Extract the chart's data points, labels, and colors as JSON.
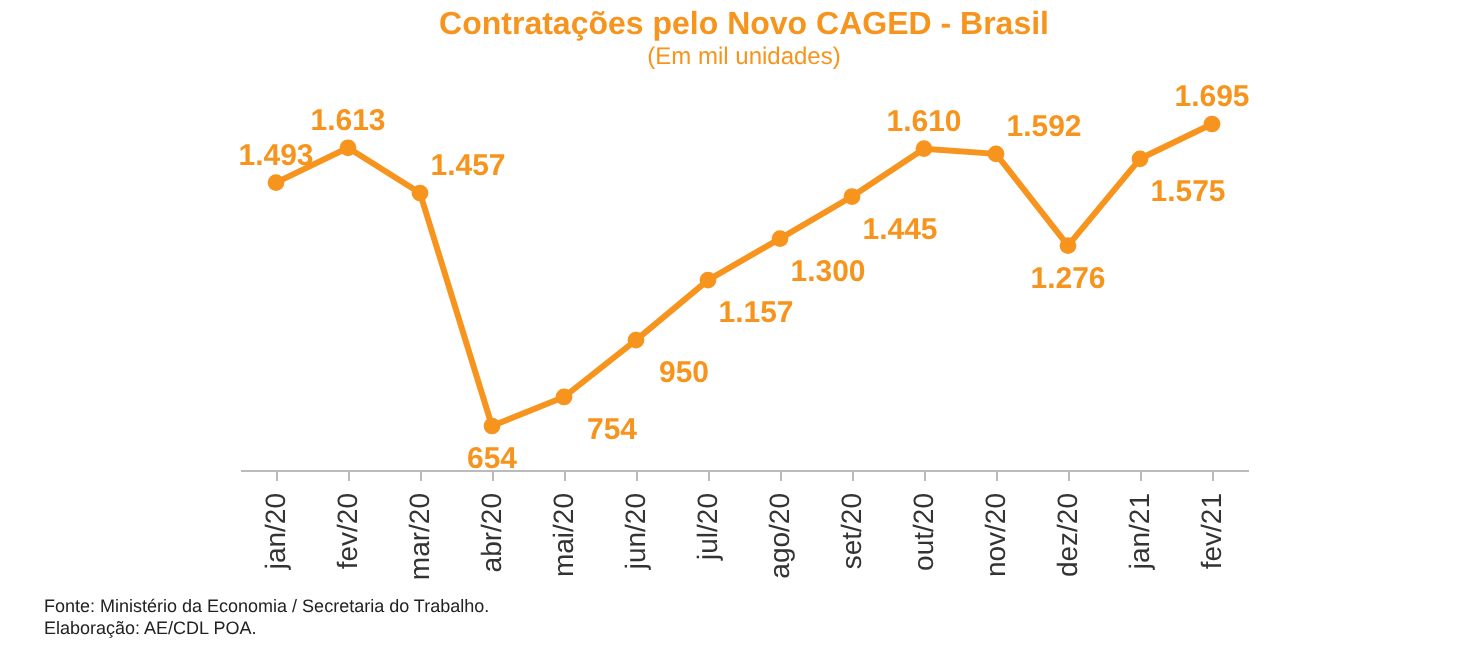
{
  "chart_data": {
    "type": "line",
    "title": "Contratações pelo Novo CAGED - Brasil",
    "subtitle": "(Em mil unidades)",
    "categories": [
      "jan/20",
      "fev/20",
      "mar/20",
      "abr/20",
      "mai/20",
      "jun/20",
      "jul/20",
      "ago/20",
      "set/20",
      "out/20",
      "nov/20",
      "dez/20",
      "jan/21",
      "fev/21"
    ],
    "series": [
      {
        "color": "#f7941d",
        "values": [
          1493,
          1613,
          1457,
          654,
          754,
          950,
          1157,
          1300,
          1445,
          1610,
          1592,
          1276,
          1575,
          1695
        ],
        "value_labels": [
          "1.493",
          "1.613",
          "1.457",
          "654",
          "754",
          "950",
          "1.157",
          "1.300",
          "1.445",
          "1.610",
          "1.592",
          "1.276",
          "1.575",
          "1.695"
        ]
      }
    ],
    "marker": "circle",
    "grid": false,
    "annotations": [
      "Fonte: Ministério da Economia / Secretaria do Trabalho.",
      "Elaboração: AE/CDL POA."
    ]
  }
}
